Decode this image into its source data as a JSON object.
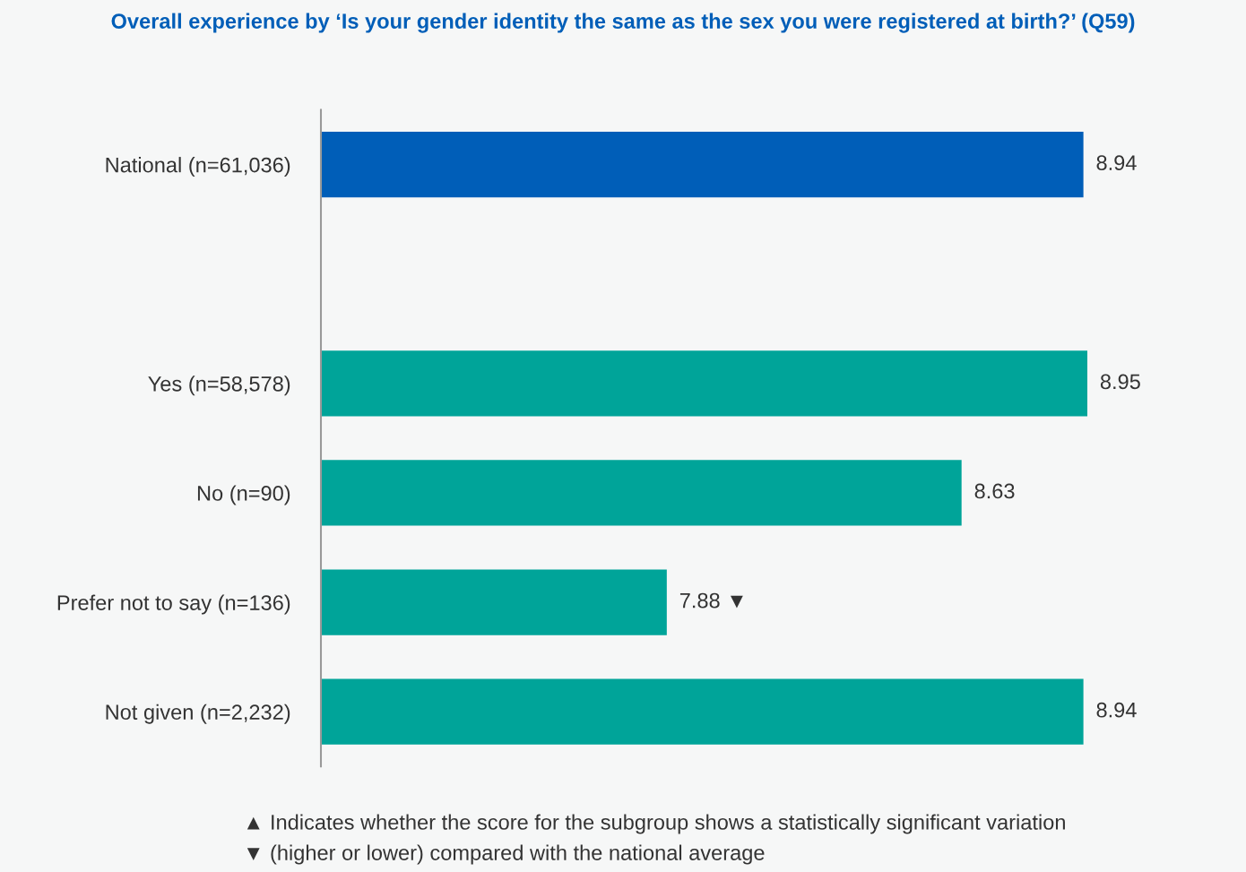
{
  "chart_data": {
    "type": "bar",
    "orientation": "horizontal",
    "title": "Overall experience by ‘Is your gender identity the same as the sex you were registered at birth?’ (Q59)",
    "categories": [
      "National (n=61,036)",
      null,
      "Yes (n=58,578)",
      "No (n=90)",
      "Prefer not to say (n=136)",
      "Not given (n=2,232)"
    ],
    "values": [
      8.94,
      null,
      8.95,
      8.63,
      7.88,
      8.94
    ],
    "colors": [
      "#005eb8",
      null,
      "#00a499",
      "#00a499",
      "#00a499",
      "#00a499"
    ],
    "xlim": [
      7.0,
      8.95
    ],
    "value_labels": [
      "8.94",
      null,
      "8.95",
      "8.63",
      "7.88 ▼",
      "8.94"
    ],
    "tick_labels": "y",
    "grid": false,
    "legend": false,
    "annotations": [
      "▲ Indicates whether the score for the subgroup shows a statistically significant variation",
      "▼ (higher or lower) compared with the national average"
    ]
  }
}
